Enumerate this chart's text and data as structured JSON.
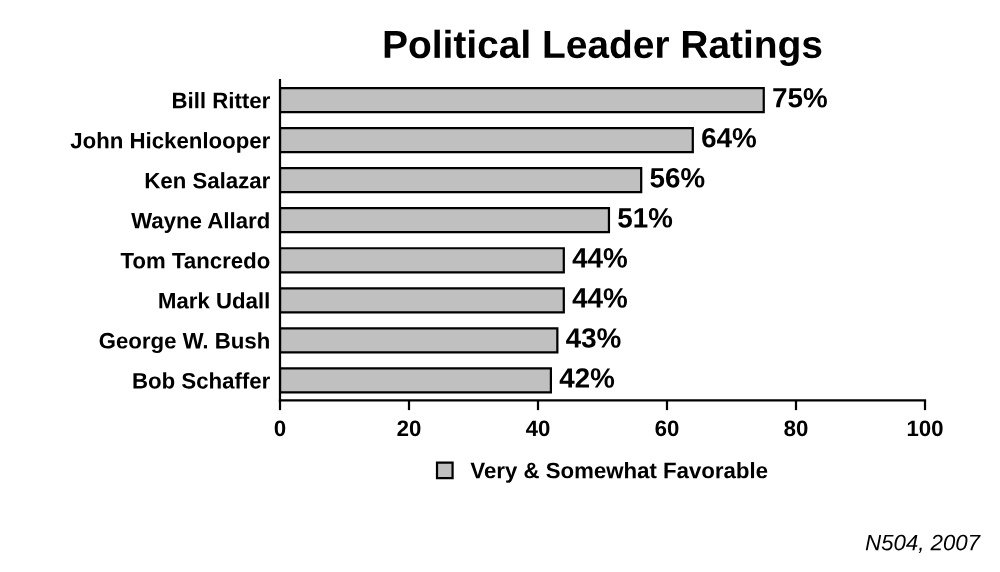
{
  "chart_data": {
    "type": "bar",
    "orientation": "horizontal",
    "title": "Political Leader Ratings",
    "categories": [
      "Bill Ritter",
      "John Hickenlooper",
      "Ken Salazar",
      "Wayne Allard",
      "Tom Tancredo",
      "Mark Udall",
      "George W. Bush",
      "Bob Schaffer"
    ],
    "series": [
      {
        "name": "Very & Somewhat Favorable",
        "color": "#c0c0c0",
        "values": [
          75,
          64,
          56,
          51,
          44,
          44,
          43,
          42
        ],
        "value_labels": [
          "75%",
          "64%",
          "56%",
          "51%",
          "44%",
          "44%",
          "43%",
          "42%"
        ]
      }
    ],
    "xlim": [
      0,
      100
    ],
    "xticks": [
      0,
      20,
      40,
      60,
      80,
      100
    ],
    "grid": false,
    "legend": "bottom",
    "annotations": [
      "N504, 2007"
    ]
  }
}
